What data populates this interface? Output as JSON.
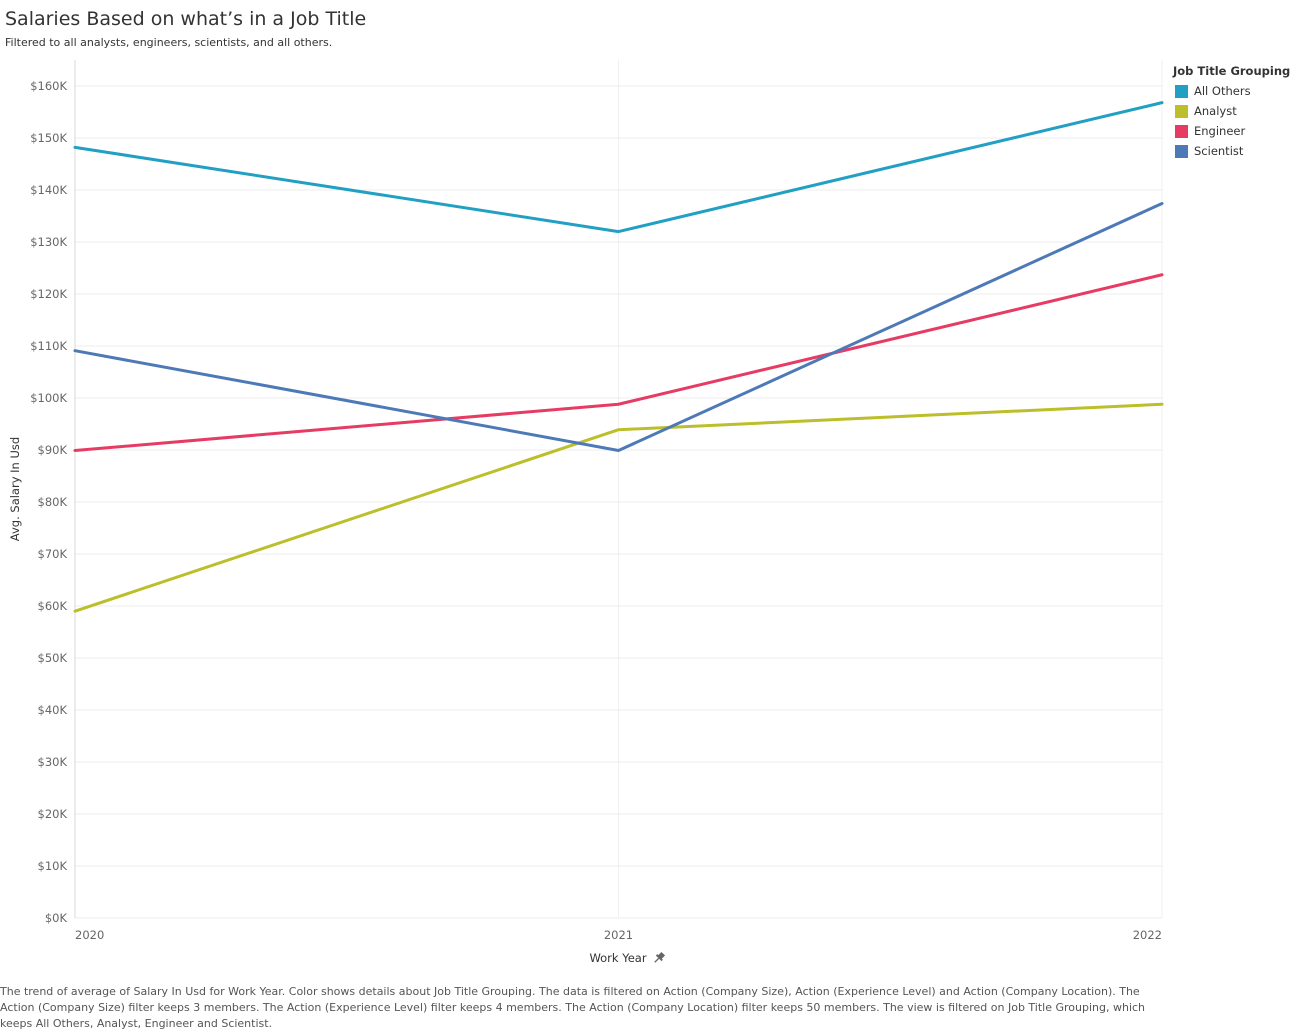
{
  "header": {
    "title": "Salaries Based on what’s in a Job Title",
    "subtitle": "Filtered to all analysts, engineers, scientists, and all others."
  },
  "legend": {
    "title": "Job Title Grouping",
    "items": [
      {
        "label": "All Others",
        "color": "#22a0c3"
      },
      {
        "label": "Analyst",
        "color": "#bcbf2a"
      },
      {
        "label": "Engineer",
        "color": "#e63c64"
      },
      {
        "label": "Scientist",
        "color": "#4e79b7"
      }
    ]
  },
  "chart_data": {
    "type": "line",
    "title": "Salaries Based on what’s in a Job Title",
    "xlabel": "Work Year",
    "xlabel_icon": "pin-icon",
    "ylabel": "Avg. Salary In Usd",
    "categories": [
      "2020",
      "2021",
      "2022"
    ],
    "ylim": [
      0,
      165000
    ],
    "yticks": [
      0,
      10000,
      20000,
      30000,
      40000,
      50000,
      60000,
      70000,
      80000,
      90000,
      100000,
      110000,
      120000,
      130000,
      140000,
      150000,
      160000
    ],
    "ytick_labels": [
      "$0K",
      "$10K",
      "$20K",
      "$30K",
      "$40K",
      "$50K",
      "$60K",
      "$70K",
      "$80K",
      "$90K",
      "$100K",
      "$110K",
      "$120K",
      "$130K",
      "$140K",
      "$150K",
      "$160K"
    ],
    "grid": true,
    "legend_position": "top-right",
    "series": [
      {
        "name": "All Others",
        "color": "#22a0c3",
        "values": [
          148200,
          132000,
          156800
        ]
      },
      {
        "name": "Analyst",
        "color": "#bcbf2a",
        "values": [
          59000,
          93900,
          98800
        ]
      },
      {
        "name": "Engineer",
        "color": "#e63c64",
        "values": [
          89900,
          98800,
          123700
        ]
      },
      {
        "name": "Scientist",
        "color": "#4e79b7",
        "values": [
          109100,
          89900,
          137400
        ]
      }
    ]
  },
  "footnote": "The trend of average of Salary In Usd for Work Year.  Color shows details about Job Title Grouping. The data is filtered on Action (Company Size), Action (Experience Level) and Action (Company Location). The Action (Company Size) filter keeps 3 members. The Action (Experience Level) filter keeps 4 members. The Action (Company Location) filter keeps 50 members. The view is filtered on Job Title Grouping, which keeps All Others, Analyst, Engineer and Scientist."
}
